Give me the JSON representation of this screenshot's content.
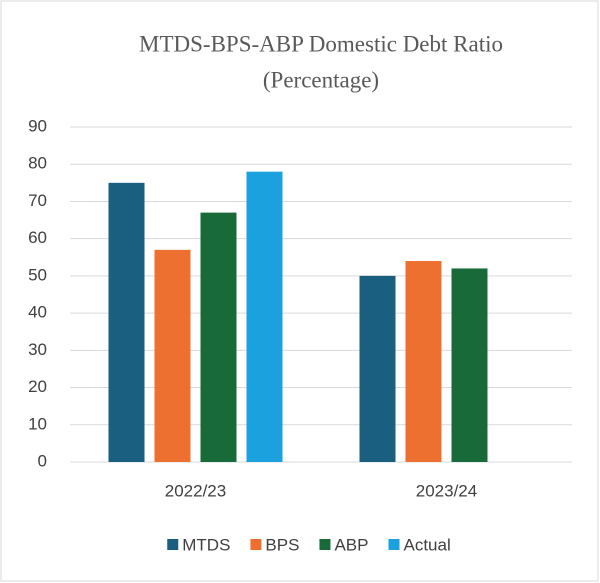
{
  "chart_data": {
    "type": "bar",
    "title": "MTDS-BPS-ABP Domestic Debt Ratio",
    "subtitle": "(Percentage)",
    "categories": [
      "2022/23",
      "2023/24"
    ],
    "series": [
      {
        "name": "MTDS",
        "color": "#1a5e80",
        "values": [
          75,
          50
        ]
      },
      {
        "name": "BPS",
        "color": "#ed7030",
        "values": [
          57,
          54
        ]
      },
      {
        "name": "ABP",
        "color": "#186b38",
        "values": [
          67,
          52
        ]
      },
      {
        "name": "Actual",
        "color": "#1ba1de",
        "values": [
          78,
          null
        ]
      }
    ],
    "ylim": [
      0,
      90
    ],
    "yticks": [
      0,
      10,
      20,
      30,
      40,
      50,
      60,
      70,
      80,
      90
    ],
    "grid": true,
    "legend": "bottom"
  }
}
